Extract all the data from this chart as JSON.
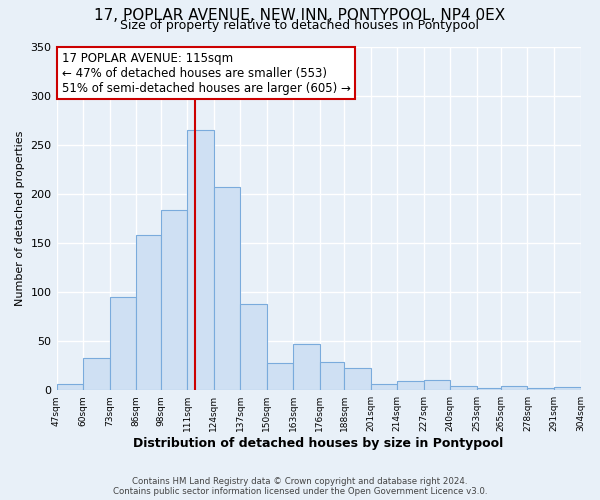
{
  "title": "17, POPLAR AVENUE, NEW INN, PONTYPOOL, NP4 0EX",
  "subtitle": "Size of property relative to detached houses in Pontypool",
  "xlabel": "Distribution of detached houses by size in Pontypool",
  "ylabel": "Number of detached properties",
  "bar_color": "#cfe0f3",
  "bar_edge_color": "#7aabdc",
  "bin_labels": [
    "47sqm",
    "60sqm",
    "73sqm",
    "86sqm",
    "98sqm",
    "111sqm",
    "124sqm",
    "137sqm",
    "150sqm",
    "163sqm",
    "176sqm",
    "188sqm",
    "201sqm",
    "214sqm",
    "227sqm",
    "240sqm",
    "253sqm",
    "265sqm",
    "278sqm",
    "291sqm",
    "304sqm"
  ],
  "bar_heights": [
    6,
    33,
    95,
    158,
    184,
    265,
    207,
    88,
    28,
    47,
    29,
    23,
    6,
    9,
    10,
    4,
    2,
    4,
    2,
    3
  ],
  "bin_edges": [
    47,
    60,
    73,
    86,
    98,
    111,
    124,
    137,
    150,
    163,
    176,
    188,
    201,
    214,
    227,
    240,
    253,
    265,
    278,
    291,
    304
  ],
  "vline_x": 115,
  "vline_color": "#cc0000",
  "ylim": [
    0,
    350
  ],
  "yticks": [
    0,
    50,
    100,
    150,
    200,
    250,
    300,
    350
  ],
  "annotation_title": "17 POPLAR AVENUE: 115sqm",
  "annotation_line1": "← 47% of detached houses are smaller (553)",
  "annotation_line2": "51% of semi-detached houses are larger (605) →",
  "annotation_box_color": "#ffffff",
  "annotation_box_edge": "#cc0000",
  "footer1": "Contains HM Land Registry data © Crown copyright and database right 2024.",
  "footer2": "Contains public sector information licensed under the Open Government Licence v3.0.",
  "background_color": "#e8f0f8",
  "grid_color": "#ffffff"
}
